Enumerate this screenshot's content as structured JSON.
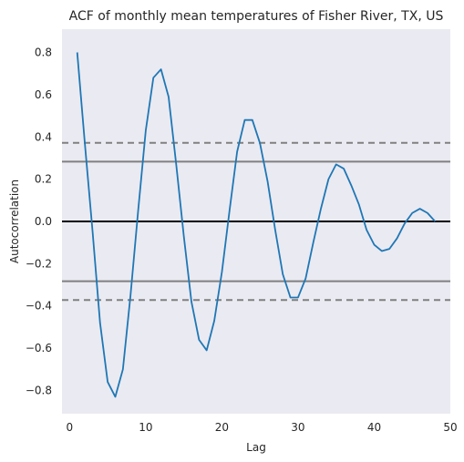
{
  "chart_data": {
    "type": "line",
    "title": "ACF of monthly mean temperatures of Fisher River, TX, US",
    "xlabel": "Lag",
    "ylabel": "Autocorrelation",
    "xlim": [
      -1,
      50
    ],
    "ylim": [
      -0.91,
      0.91
    ],
    "xticks": [
      0,
      10,
      20,
      30,
      40,
      50
    ],
    "yticks": [
      0.8,
      0.6,
      0.4,
      0.2,
      0.0,
      -0.2,
      -0.4,
      -0.6,
      -0.8
    ],
    "ytick_labels": [
      "0.8",
      "0.6",
      "0.4",
      "0.2",
      "0.0",
      "−0.2",
      "−0.4",
      "−0.6",
      "−0.8"
    ],
    "grid": false,
    "background": "#eaeaf2",
    "series": [
      {
        "color": "#1f77b4",
        "x": [
          1,
          2,
          3,
          4,
          5,
          6,
          7,
          8,
          9,
          10,
          11,
          12,
          13,
          14,
          15,
          16,
          17,
          18,
          19,
          20,
          21,
          22,
          23,
          24,
          25,
          26,
          27,
          28,
          29,
          30,
          31,
          32,
          33,
          34,
          35,
          36,
          37,
          38,
          39,
          40,
          41,
          42,
          43,
          44,
          45,
          46,
          47,
          48
        ],
        "values": [
          0.8,
          0.37,
          -0.04,
          -0.48,
          -0.76,
          -0.83,
          -0.7,
          -0.35,
          0.05,
          0.43,
          0.68,
          0.72,
          0.59,
          0.27,
          -0.07,
          -0.38,
          -0.56,
          -0.61,
          -0.47,
          -0.24,
          0.05,
          0.33,
          0.48,
          0.48,
          0.37,
          0.19,
          -0.04,
          -0.25,
          -0.36,
          -0.36,
          -0.27,
          -0.1,
          0.06,
          0.2,
          0.27,
          0.25,
          0.17,
          0.08,
          -0.04,
          -0.11,
          -0.14,
          -0.13,
          -0.08,
          -0.01,
          0.04,
          0.06,
          0.04,
          0.0
        ]
      }
    ],
    "reference_lines": [
      {
        "y": 0.0,
        "color": "#000000",
        "style": "solid"
      },
      {
        "y": 0.283,
        "color": "#808080",
        "style": "solid"
      },
      {
        "y": -0.283,
        "color": "#808080",
        "style": "solid"
      },
      {
        "y": 0.372,
        "color": "#808080",
        "style": "dashed"
      },
      {
        "y": -0.372,
        "color": "#808080",
        "style": "dashed"
      }
    ]
  }
}
